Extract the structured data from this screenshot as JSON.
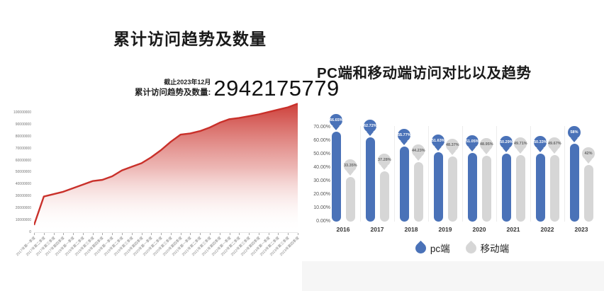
{
  "page": {
    "background": "#ffffff"
  },
  "left_panel": {
    "title": "累计访问趋势及数量",
    "annotation": {
      "date_note": "截止2023年12月",
      "label": "累计访问趋势及数量:",
      "value": "2942175779"
    }
  },
  "right_panel": {
    "title": "PC端和移动端访问对比以及趋势",
    "legend": [
      {
        "name": "pc端",
        "color": "#4a72b8"
      },
      {
        "name": "移动端",
        "color": "#d6d6d6"
      }
    ]
  },
  "chart_data": [
    {
      "type": "area",
      "title": "累计访问趋势及数量",
      "x": [
        "2017年第一季度",
        "2017年第二季度",
        "2017年第三季度",
        "2017年第四季度",
        "2018年第一季度",
        "2018年第二季度",
        "2018年第三季度",
        "2018年第四季度",
        "2019年第一季度",
        "2019年第二季度",
        "2019年第三季度",
        "2019年第四季度",
        "2020年第一季度",
        "2020年第二季度",
        "2020年第三季度",
        "2020年第四季度",
        "2021年第一季度",
        "2021年第二季度",
        "2021年第三季度",
        "2021年第四季度",
        "2022年第一季度",
        "2022年第二季度",
        "2022年第三季度",
        "2022年第四季度",
        "2023年第一季度",
        "2023年第二季度",
        "2023年第三季度",
        "2023年第四季度"
      ],
      "values": [
        6000000,
        30000000,
        32000000,
        34000000,
        37000000,
        40000000,
        43000000,
        44000000,
        47000000,
        52000000,
        55000000,
        58000000,
        63000000,
        69000000,
        76000000,
        82000000,
        83000000,
        85000000,
        88000000,
        92000000,
        95000000,
        96000000,
        97500000,
        99000000,
        101000000,
        103000000,
        105000000,
        108000000
      ],
      "ylim": [
        0,
        100000000
      ],
      "yticks": [
        0,
        10000000,
        20000000,
        30000000,
        40000000,
        50000000,
        60000000,
        70000000,
        80000000,
        90000000,
        100000000
      ],
      "grid": false,
      "line_color": "#c9302a",
      "fill": "vertical gradient red to white",
      "annotation": {
        "text": "截止2023年12月",
        "label": "累计访问趋势及数量:",
        "value": 2942175779
      }
    },
    {
      "type": "bar",
      "title": "PC端和移动端访问对比以及趋势",
      "categories": [
        "2016",
        "2017",
        "2018",
        "2019",
        "2020",
        "2021",
        "2022",
        "2023"
      ],
      "series": [
        {
          "name": "pc端",
          "color": "#4a72b8",
          "label_text_color": "#ffffff",
          "values": [
            66.65,
            62.72,
            55.77,
            51.63,
            51.05,
            50.29,
            50.33,
            58
          ],
          "labels": [
            "66.65%",
            "62.72%",
            "55.77%",
            "51.63%",
            "51.05%",
            "50.29%",
            "50.33%",
            "58%"
          ]
        },
        {
          "name": "移动端",
          "color": "#d6d6d6",
          "label_text_color": "#666666",
          "values": [
            33.35,
            37.28,
            44.23,
            48.37,
            48.95,
            49.71,
            49.67,
            42
          ],
          "labels": [
            "33.35%",
            "37.28%",
            "44.23%",
            "48.37%",
            "48.95%",
            "49.71%",
            "49.67%",
            "42%"
          ]
        }
      ],
      "ylim": [
        0,
        70
      ],
      "ytick_labels": [
        "0.00%",
        "10.00%",
        "20.00%",
        "30.00%",
        "40.00%",
        "50.00%",
        "60.00%",
        "70.00%"
      ],
      "legend_position": "bottom",
      "grid": false
    }
  ]
}
